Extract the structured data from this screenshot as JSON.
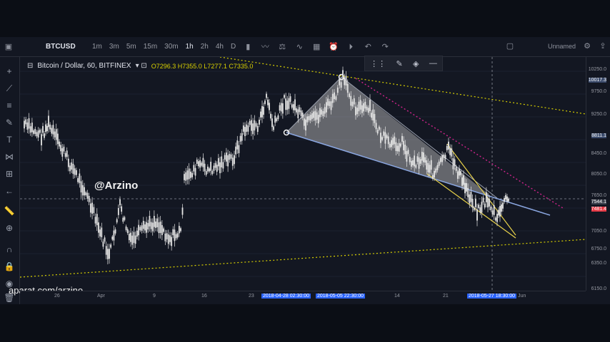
{
  "toolbar": {
    "symbol": "BTCUSD",
    "intervals": [
      "1m",
      "3m",
      "5m",
      "15m",
      "30m",
      "1h",
      "2h",
      "4h",
      "D"
    ],
    "active_interval": "1h",
    "layout_name": "Unnamed"
  },
  "legend": {
    "title": "Bitcoin / Dollar, 60, BITFINEX",
    "ohlc": "O7296.3  H7355.0  L7277.1  C7335.0"
  },
  "price_axis": [
    "10250.0",
    "10017.3",
    "9750.0",
    "9250.0",
    "8811.1",
    "8450.0",
    "8050.0",
    "7650.0",
    "7544.1",
    "7481.4",
    "7050.0",
    "6750.0",
    "6350.0",
    "6150.0"
  ],
  "price_tags": {
    "top": "10017.3",
    "mid": "8811.1",
    "cur": "7544.1",
    "red": "7481.4"
  },
  "time_axis": [
    {
      "label": "26"
    },
    {
      "label": "Apr"
    },
    {
      "label": "9"
    },
    {
      "label": "16"
    },
    {
      "label": "23"
    },
    {
      "label": "2018-04-28 02:30:00",
      "hl": true
    },
    {
      "label": "2018-05-05 22:30:00",
      "hl": true
    },
    {
      "label": "14"
    },
    {
      "label": "21"
    },
    {
      "label": "2018-05-27 18:30:00",
      "hl": true
    },
    {
      "label": "Jun"
    }
  ],
  "watermark": "@Arzino",
  "watermark_bottom": "aparat.com/arzino",
  "colors": {
    "bg": "#131722",
    "candle": "#e6e6e6",
    "fib_line": "#d8d000",
    "wedge": "#e8d24a",
    "triangle_edge": "#8aa6e0",
    "dotted_magenta": "#d0248c"
  }
}
